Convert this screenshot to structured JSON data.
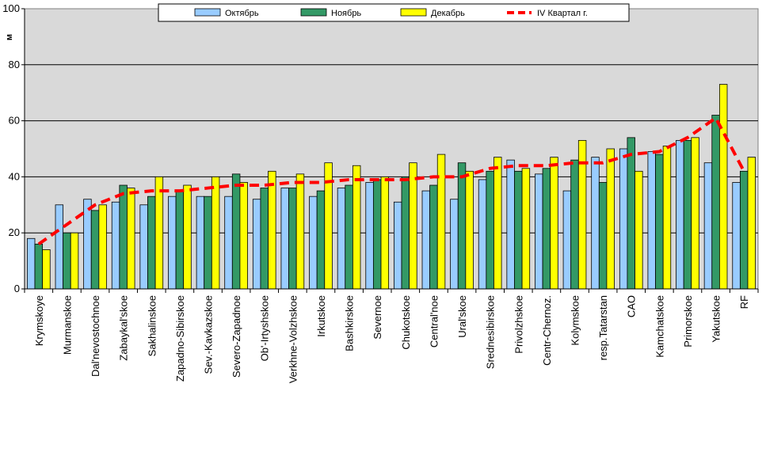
{
  "chart_data": {
    "type": "bar",
    "ylabel": "м",
    "ylim": [
      0,
      100
    ],
    "yticks": [
      0,
      20,
      40,
      60,
      80,
      100
    ],
    "grid": true,
    "legend_position": "top",
    "categories": [
      "Krymskoye",
      "Murmanskoe",
      "Dal'nevostochnoe",
      "Zabaykal'skoe",
      "Sakhalinskoe",
      "Zapadno-Sibirskoe",
      "Sev.-Kavkazskoe",
      "Severo-Zapadnoe",
      "Ob'-Irtyshskoe",
      "Verkhne-Volzhskoe",
      "Irkutskoe",
      "Bashkirskoe",
      "Severnoe",
      "Chukotskoe",
      "Central'noe",
      "Ural'skoe",
      "Srednesibirskoe",
      "Privolzhskoe",
      "Centr-Chernoz.",
      "Kolymskoe",
      "resp.Tatarstan",
      "CAO",
      "Kamchatskoe",
      "Primorskoe",
      "Yakutskoe",
      "RF"
    ],
    "series": [
      {
        "name": "Октябрь",
        "type": "bar",
        "color": "#99ccff",
        "values": [
          18,
          30,
          32,
          31,
          30,
          33,
          33,
          33,
          32,
          36,
          33,
          36,
          38,
          31,
          35,
          32,
          39,
          46,
          41,
          35,
          47,
          50,
          49,
          53,
          45,
          38
        ]
      },
      {
        "name": "Ноябрь",
        "type": "bar",
        "color": "#339966",
        "values": [
          16,
          20,
          28,
          37,
          33,
          35,
          33,
          41,
          36,
          36,
          35,
          37,
          39,
          40,
          37,
          45,
          42,
          42,
          43,
          46,
          38,
          54,
          48,
          53,
          62,
          42
        ]
      },
      {
        "name": "Декабрь",
        "type": "bar",
        "color": "#ffff00",
        "values": [
          14,
          20,
          30,
          36,
          40,
          37,
          40,
          38,
          42,
          41,
          45,
          44,
          40,
          45,
          48,
          42,
          47,
          43,
          47,
          53,
          50,
          42,
          51,
          54,
          73,
          47
        ]
      },
      {
        "name": "IV Квартал г.",
        "type": "line",
        "color": "#ff0000",
        "values": [
          16,
          23,
          30,
          34,
          35,
          35,
          36,
          37,
          37,
          38,
          38,
          39,
          39,
          39,
          40,
          40,
          43,
          44,
          44,
          45,
          45,
          48,
          49,
          54,
          61,
          42
        ]
      }
    ]
  }
}
